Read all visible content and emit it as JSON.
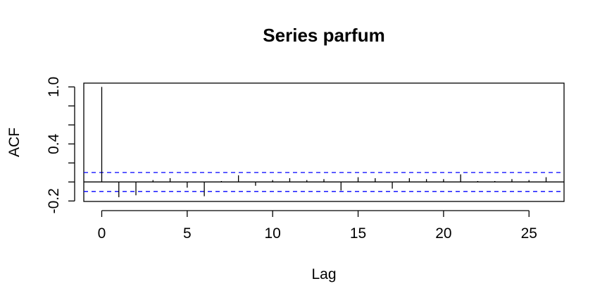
{
  "chart_data": {
    "type": "bar",
    "title": "Series  parfum",
    "xlabel": "Lag",
    "ylabel": "ACF",
    "xlim": [
      -1.05,
      27.05
    ],
    "ylim": [
      -0.205,
      1.04
    ],
    "x_ticks": [
      0,
      5,
      10,
      15,
      20,
      25
    ],
    "x_tick_labels": [
      "0",
      "5",
      "10",
      "15",
      "20",
      "25"
    ],
    "y_ticks": [
      -0.2,
      0.0,
      0.2,
      0.4,
      0.6,
      0.8,
      1.0
    ],
    "y_tick_labels": [
      "-0.2",
      "",
      "",
      "0.4",
      "",
      "",
      "1.0"
    ],
    "confidence_bound": 0.1,
    "series": [
      {
        "x": [
          0,
          1,
          2,
          3,
          4,
          5,
          6,
          7,
          8,
          9,
          10,
          11,
          12,
          13,
          14,
          15,
          16,
          17,
          18,
          19,
          20,
          21,
          22,
          23,
          24,
          25,
          26
        ],
        "values": [
          1.0,
          -0.16,
          -0.14,
          0.02,
          0.04,
          -0.06,
          -0.15,
          0.01,
          0.07,
          -0.04,
          0.02,
          0.04,
          0.02,
          0.03,
          -0.09,
          0.05,
          0.04,
          -0.07,
          0.04,
          0.03,
          0.03,
          0.08,
          0.01,
          0.01,
          0.03,
          0.02,
          0.05
        ]
      }
    ],
    "grid": false,
    "colors": {
      "bars": "#000000",
      "zero_line": "#000000",
      "confidence_line": "#0000ff",
      "frame": "#000000"
    }
  }
}
